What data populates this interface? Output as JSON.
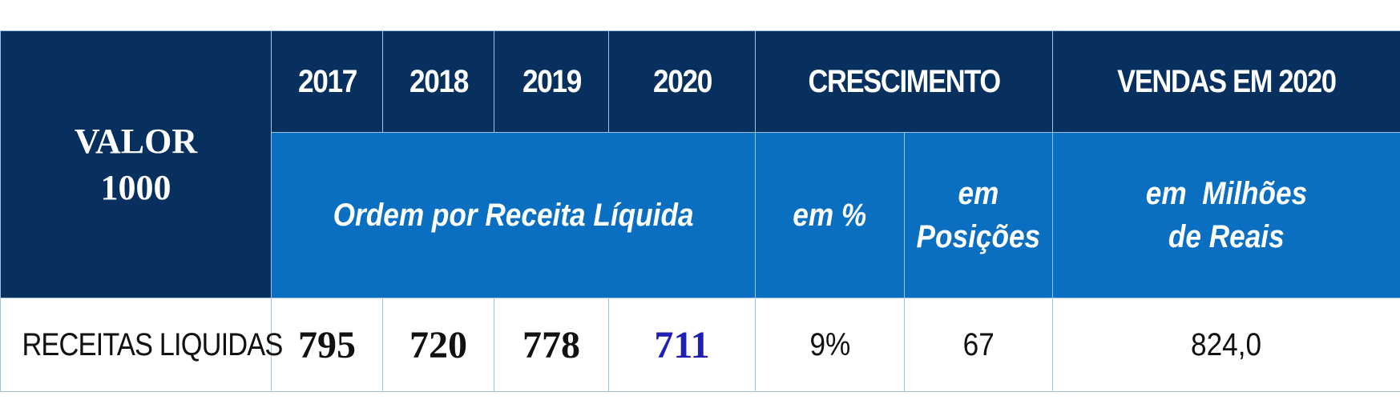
{
  "table": {
    "corner_line1": "VALOR",
    "corner_line2": "1000",
    "years": [
      "2017",
      "2018",
      "2019",
      "2020"
    ],
    "growth_header": "CRESCIMENTO",
    "sales_header": "VENDAS EM 2020",
    "order_label": "Ordem por Receita Líquida",
    "growth_pct_label": "em %",
    "growth_pos_line1": "em",
    "growth_pos_line2": "Posições",
    "sales_line1": "em  Milhões",
    "sales_line2": "de Reais",
    "row": {
      "label": "RECEITAS LIQUIDAS",
      "y2017": "795",
      "y2018": "720",
      "y2019": "778",
      "y2020": "711",
      "growth_pct": "9%",
      "growth_positions": "67",
      "sales": "824,0"
    }
  },
  "colors": {
    "header_dark": "#07305f",
    "header_light": "#0a6fc1",
    "highlight_value": "#1f1fb8"
  }
}
